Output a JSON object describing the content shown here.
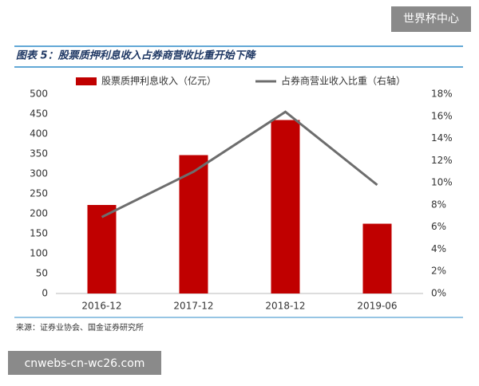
{
  "badge": "世界杯中心",
  "banner": "cnwebs-cn-wc26.com",
  "chart_data": {
    "type": "bar",
    "title": "图表 5：股票质押利息收入占券商营收比重开始下降",
    "source": "来源：证券业协会、国金证券研究所",
    "categories": [
      "2016-12",
      "2017-12",
      "2018-12",
      "2019-06"
    ],
    "series": [
      {
        "name": "股票质押利息收入（亿元）",
        "type": "bar",
        "color": "#c00000",
        "values": [
          222,
          347,
          435,
          175
        ]
      },
      {
        "name": "占券商营业收入比重（右轴）",
        "type": "line",
        "axis": "y2",
        "color": "#6d6d6d",
        "values": [
          6.9,
          11,
          16.4,
          9.8
        ]
      }
    ],
    "ylim": [
      0,
      500
    ],
    "yticks": [
      0,
      50,
      100,
      150,
      200,
      250,
      300,
      350,
      400,
      450,
      500
    ],
    "y2lim": [
      0,
      18
    ],
    "y2ticks": [
      {
        "value": 0,
        "label": "0%"
      },
      {
        "value": 2,
        "label": "2%"
      },
      {
        "value": 4,
        "label": "4%"
      },
      {
        "value": 6,
        "label": "6%"
      },
      {
        "value": 8,
        "label": "8%"
      },
      {
        "value": 10,
        "label": "10%"
      },
      {
        "value": 12,
        "label": "12%"
      },
      {
        "value": 14,
        "label": "14%"
      },
      {
        "value": 16,
        "label": "16%"
      },
      {
        "value": 18,
        "label": "18%"
      }
    ]
  }
}
